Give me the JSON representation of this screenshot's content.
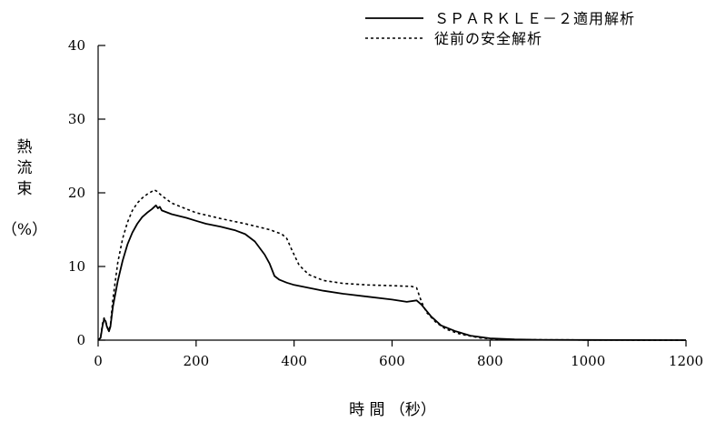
{
  "chart_data": {
    "type": "line",
    "xlabel": "時 間 （秒）",
    "ylabel_chars": [
      "熱",
      "流",
      "束"
    ],
    "ylabel_unit": "（%）",
    "xlim": [
      0,
      1200
    ],
    "ylim": [
      0,
      40
    ],
    "x_ticks": [
      0,
      200,
      400,
      600,
      800,
      1000,
      1200
    ],
    "y_ticks": [
      0,
      10,
      20,
      30,
      40
    ],
    "grid": false,
    "legend_position": "top-right",
    "series": [
      {
        "name": "ＳＰＡＲＫＬＥ－２適用解析",
        "style": "solid",
        "color": "#000000",
        "points": [
          [
            0,
            0
          ],
          [
            5,
            0.3
          ],
          [
            9,
            2.0
          ],
          [
            12,
            2.8
          ],
          [
            15,
            2.6
          ],
          [
            18,
            1.8
          ],
          [
            22,
            1.2
          ],
          [
            25,
            1.8
          ],
          [
            30,
            4.5
          ],
          [
            40,
            8.0
          ],
          [
            50,
            10.8
          ],
          [
            60,
            13.0
          ],
          [
            70,
            14.6
          ],
          [
            80,
            15.8
          ],
          [
            90,
            16.7
          ],
          [
            100,
            17.3
          ],
          [
            110,
            17.8
          ],
          [
            118,
            18.3
          ],
          [
            122,
            17.9
          ],
          [
            126,
            18.1
          ],
          [
            130,
            17.6
          ],
          [
            150,
            17.1
          ],
          [
            180,
            16.6
          ],
          [
            200,
            16.2
          ],
          [
            220,
            15.8
          ],
          [
            250,
            15.4
          ],
          [
            280,
            14.9
          ],
          [
            300,
            14.4
          ],
          [
            320,
            13.4
          ],
          [
            340,
            11.6
          ],
          [
            350,
            10.4
          ],
          [
            360,
            8.7
          ],
          [
            370,
            8.2
          ],
          [
            385,
            7.8
          ],
          [
            400,
            7.5
          ],
          [
            430,
            7.1
          ],
          [
            460,
            6.7
          ],
          [
            500,
            6.3
          ],
          [
            550,
            5.9
          ],
          [
            600,
            5.5
          ],
          [
            630,
            5.2
          ],
          [
            650,
            5.4
          ],
          [
            660,
            4.8
          ],
          [
            680,
            3.2
          ],
          [
            700,
            2.0
          ],
          [
            730,
            1.2
          ],
          [
            760,
            0.6
          ],
          [
            800,
            0.25
          ],
          [
            850,
            0.1
          ],
          [
            900,
            0.05
          ],
          [
            1000,
            0.02
          ],
          [
            1200,
            0.0
          ]
        ]
      },
      {
        "name": "従前の安全解析",
        "style": "dashed",
        "color": "#000000",
        "points": [
          [
            0,
            0
          ],
          [
            5,
            0.4
          ],
          [
            9,
            2.3
          ],
          [
            12,
            3.0
          ],
          [
            15,
            2.7
          ],
          [
            18,
            1.9
          ],
          [
            22,
            1.3
          ],
          [
            25,
            2.0
          ],
          [
            30,
            5.5
          ],
          [
            40,
            10.5
          ],
          [
            50,
            13.8
          ],
          [
            60,
            16.0
          ],
          [
            70,
            17.6
          ],
          [
            80,
            18.6
          ],
          [
            90,
            19.3
          ],
          [
            100,
            19.8
          ],
          [
            110,
            20.2
          ],
          [
            115,
            20.4
          ],
          [
            120,
            20.2
          ],
          [
            130,
            19.6
          ],
          [
            150,
            18.6
          ],
          [
            180,
            17.8
          ],
          [
            200,
            17.3
          ],
          [
            250,
            16.5
          ],
          [
            300,
            15.8
          ],
          [
            350,
            15.0
          ],
          [
            375,
            14.4
          ],
          [
            385,
            13.8
          ],
          [
            395,
            12.3
          ],
          [
            410,
            10.2
          ],
          [
            430,
            8.9
          ],
          [
            460,
            8.1
          ],
          [
            500,
            7.7
          ],
          [
            550,
            7.5
          ],
          [
            600,
            7.4
          ],
          [
            640,
            7.3
          ],
          [
            650,
            7.1
          ],
          [
            660,
            5.2
          ],
          [
            670,
            3.8
          ],
          [
            690,
            2.4
          ],
          [
            710,
            1.5
          ],
          [
            740,
            0.8
          ],
          [
            780,
            0.3
          ],
          [
            820,
            0.1
          ],
          [
            900,
            0.05
          ],
          [
            1000,
            0.02
          ],
          [
            1200,
            0.0
          ]
        ]
      }
    ]
  }
}
